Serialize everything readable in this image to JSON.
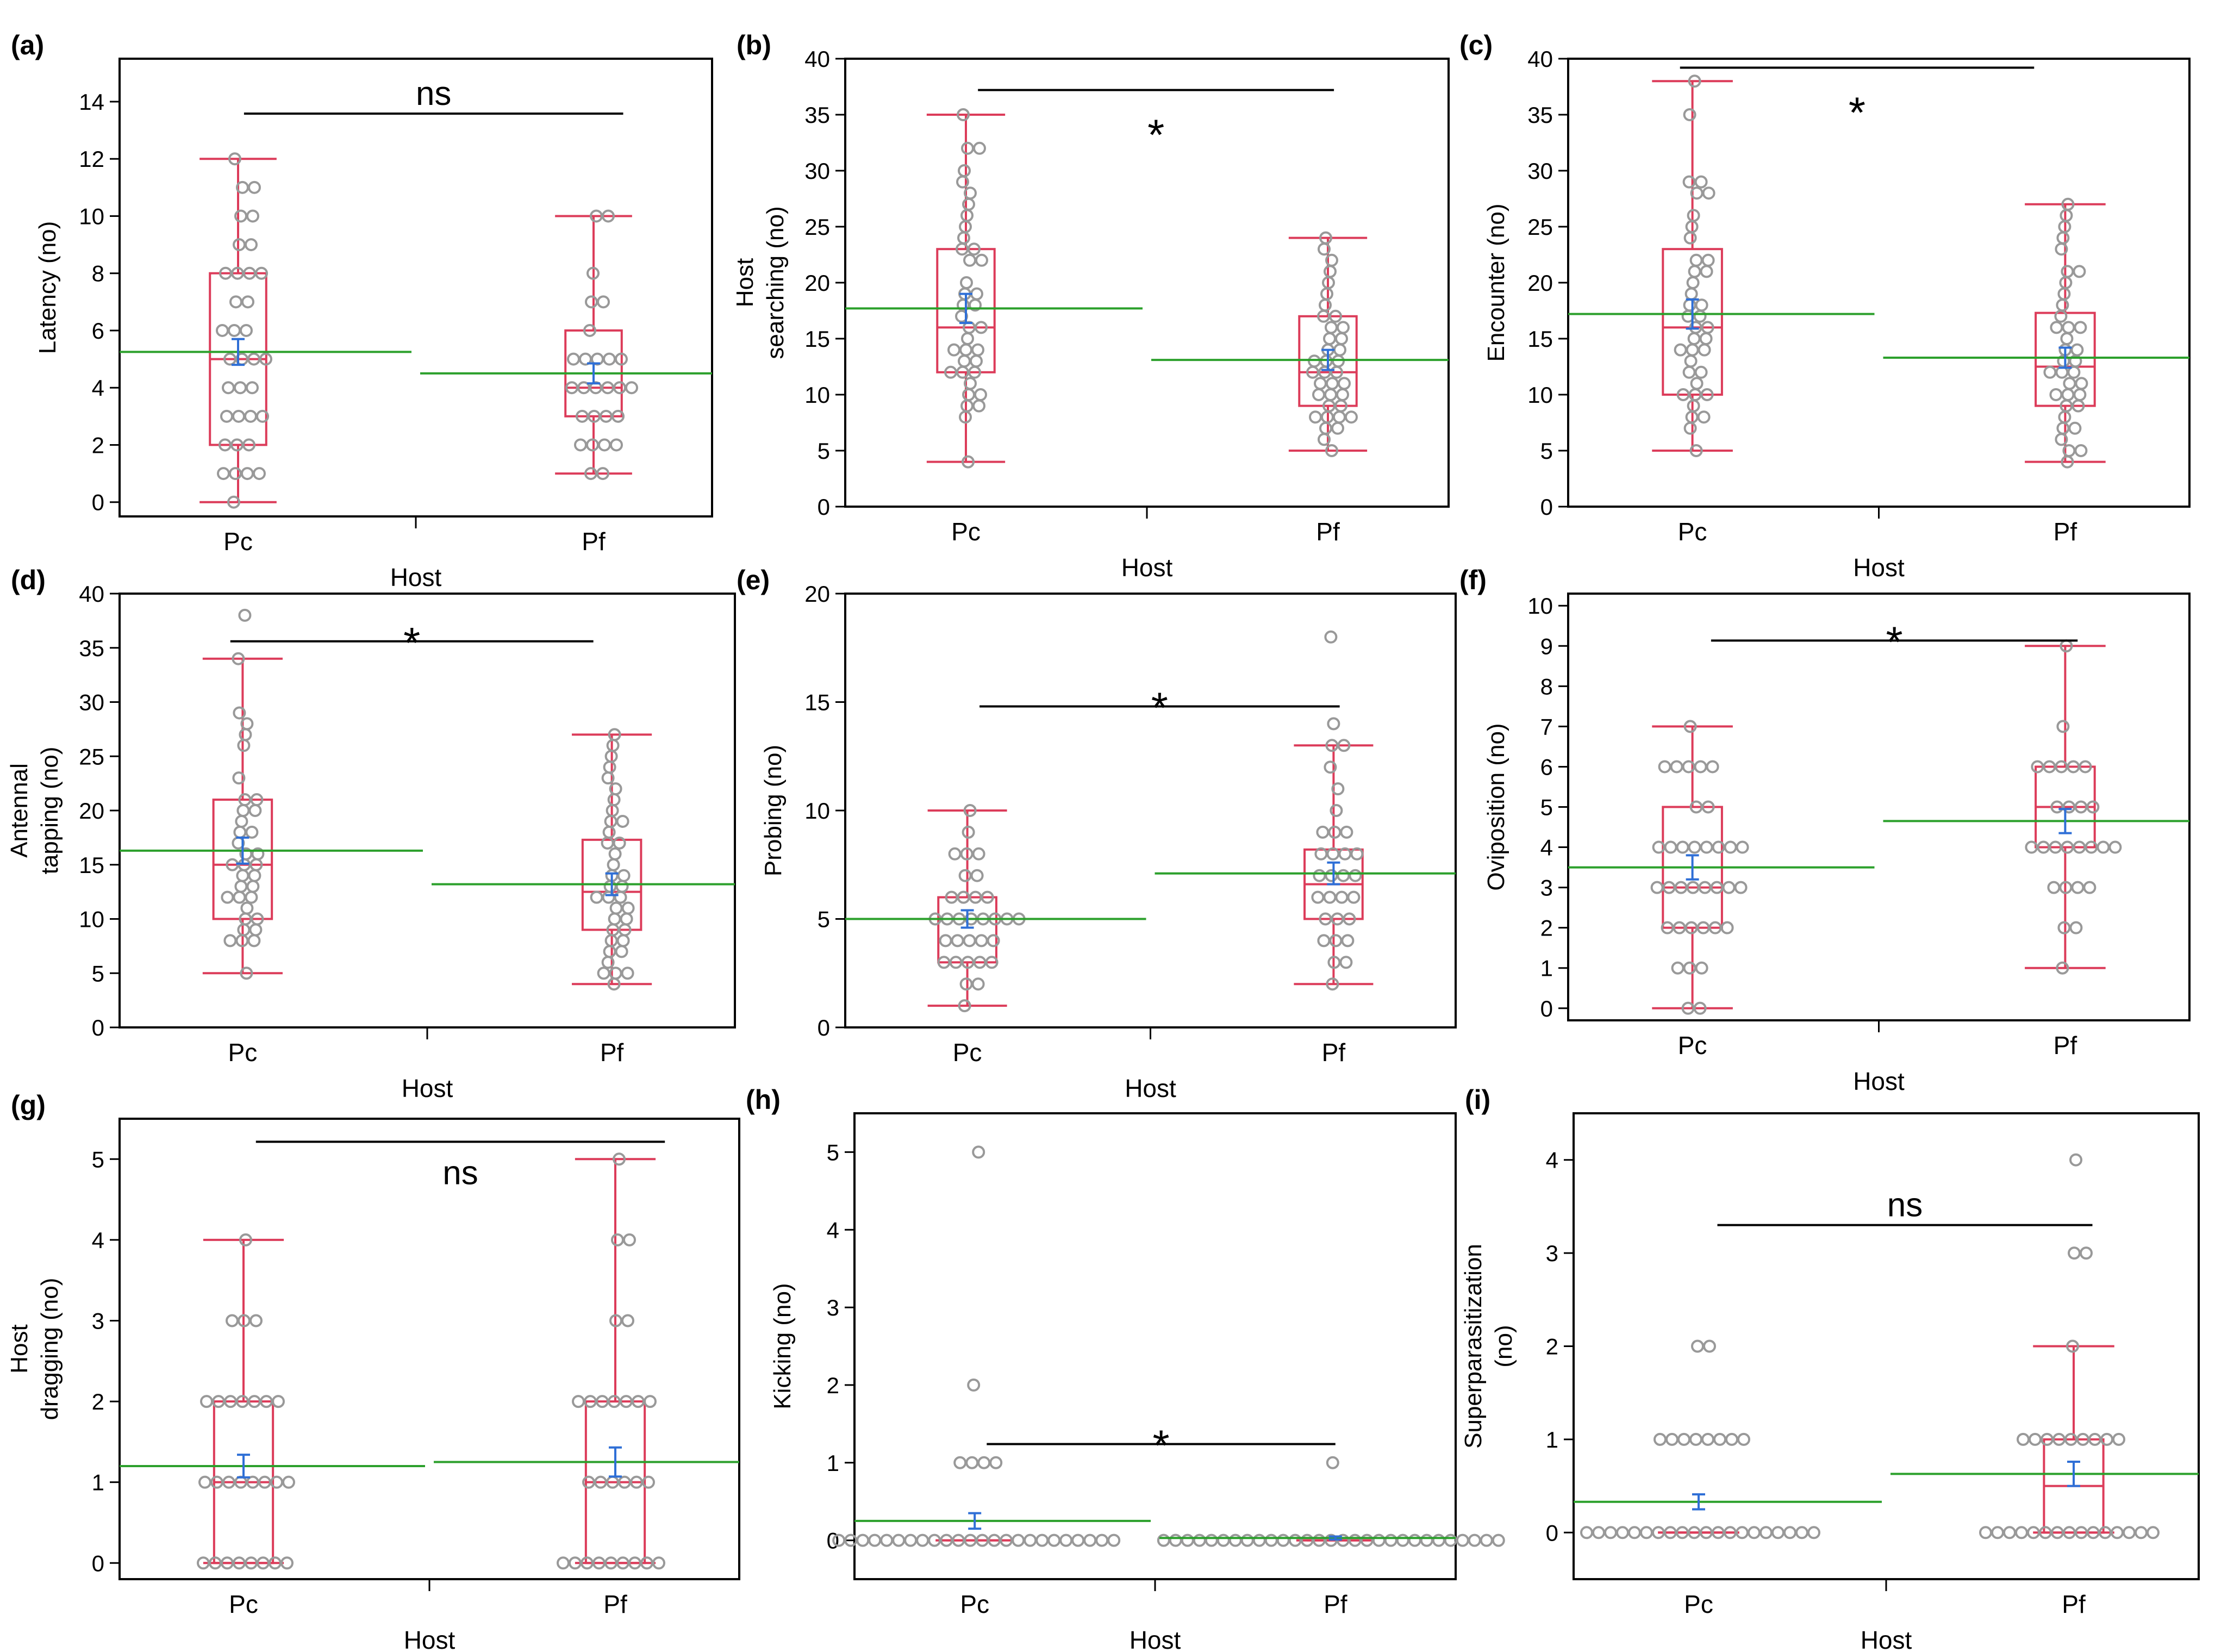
{
  "figure": {
    "x_axis_label": "Host"
  },
  "colors": {
    "box": "#dc3c5a",
    "dot": "#999999",
    "mean_line": "#2ca02c",
    "sem": "#2f6fd6",
    "axis": "#000000",
    "bracket": "#000000"
  },
  "chart_data": [
    {
      "panel": "(a)",
      "type": "box",
      "ylabel": [
        "Latency (no)"
      ],
      "categories": [
        "Pc",
        "Pf"
      ],
      "ylim": [
        -0.5,
        15.5
      ],
      "yticks": [
        0,
        2,
        4,
        6,
        8,
        10,
        12,
        14
      ],
      "boxes": [
        {
          "min": 0,
          "q1": 2,
          "median": 5,
          "q3": 8,
          "max": 12,
          "mean": 5.25,
          "sem": 0.45
        },
        {
          "min": 1,
          "q1": 3,
          "median": 4,
          "q3": 6,
          "max": 10,
          "mean": 4.5,
          "sem": 0.35
        }
      ],
      "points": [
        [
          12,
          11,
          11,
          10,
          10,
          9,
          9,
          8,
          8,
          8,
          8,
          7,
          7,
          6,
          6,
          6,
          5,
          5,
          5,
          5,
          4,
          4,
          4,
          3,
          3,
          3,
          3,
          2,
          2,
          2,
          1,
          1,
          1,
          1,
          0
        ],
        [
          10,
          10,
          8,
          7,
          7,
          6,
          5,
          5,
          5,
          5,
          5,
          4,
          4,
          4,
          4,
          4,
          4,
          3,
          3,
          3,
          3,
          2,
          2,
          2,
          2,
          1,
          1
        ]
      ],
      "significance": "ns"
    },
    {
      "panel": "(b)",
      "type": "box",
      "ylabel": [
        "Host",
        "searching (no)"
      ],
      "categories": [
        "Pc",
        "Pf"
      ],
      "ylim": [
        0,
        40
      ],
      "yticks": [
        0,
        5,
        10,
        15,
        20,
        25,
        30,
        35,
        40
      ],
      "boxes": [
        {
          "min": 4,
          "q1": 12,
          "median": 16,
          "q3": 23,
          "max": 35,
          "mean": 17.7,
          "sem": 1.3
        },
        {
          "min": 5,
          "q1": 9,
          "median": 12,
          "q3": 17,
          "max": 24,
          "mean": 13.1,
          "sem": 0.9
        }
      ],
      "points": [
        [
          35,
          32,
          32,
          30,
          29,
          28,
          27,
          26,
          25,
          24,
          23,
          23,
          22,
          22,
          20,
          19,
          19,
          18,
          18,
          17,
          16,
          16,
          15,
          14,
          14,
          14,
          13,
          13,
          12,
          12,
          12,
          11,
          10,
          10,
          9,
          9,
          8,
          4
        ],
        [
          24,
          23,
          22,
          21,
          20,
          19,
          18,
          17,
          17,
          16,
          16,
          15,
          15,
          14,
          14,
          13,
          13,
          13,
          12,
          12,
          12,
          11,
          11,
          11,
          10,
          10,
          10,
          9,
          9,
          8,
          8,
          8,
          8,
          7,
          7,
          6,
          5
        ]
      ],
      "significance": "*"
    },
    {
      "panel": "(c)",
      "type": "box",
      "ylabel": [
        "Encounter (no)"
      ],
      "categories": [
        "Pc",
        "Pf"
      ],
      "ylim": [
        0,
        40
      ],
      "yticks": [
        0,
        5,
        10,
        15,
        20,
        25,
        30,
        35,
        40
      ],
      "boxes": [
        {
          "min": 5,
          "q1": 10,
          "median": 16,
          "q3": 23,
          "max": 38,
          "mean": 17.2,
          "sem": 1.3
        },
        {
          "min": 4,
          "q1": 9,
          "median": 12.5,
          "q3": 17.3,
          "max": 27,
          "mean": 13.3,
          "sem": 0.9
        }
      ],
      "points": [
        [
          38,
          35,
          29,
          29,
          28,
          28,
          26,
          25,
          24,
          22,
          22,
          21,
          21,
          20,
          19,
          18,
          18,
          17,
          17,
          16,
          16,
          15,
          15,
          14,
          14,
          14,
          13,
          12,
          12,
          11,
          10,
          10,
          10,
          9,
          8,
          8,
          7,
          5
        ],
        [
          27,
          26,
          25,
          24,
          23,
          21,
          21,
          20,
          19,
          18,
          17,
          16,
          16,
          16,
          15,
          14,
          14,
          13,
          13,
          12,
          12,
          12,
          11,
          11,
          10,
          10,
          10,
          9,
          9,
          8,
          7,
          7,
          6,
          5,
          5,
          4
        ]
      ],
      "significance": "*"
    },
    {
      "panel": "(d)",
      "type": "box",
      "ylabel": [
        "Antennal",
        "tapping (no)"
      ],
      "categories": [
        "Pc",
        "Pf"
      ],
      "ylim": [
        0,
        40
      ],
      "yticks": [
        0,
        5,
        10,
        15,
        20,
        25,
        30,
        35,
        40
      ],
      "boxes": [
        {
          "min": 5,
          "q1": 10,
          "median": 15,
          "q3": 21,
          "max": 34,
          "mean": 16.3,
          "sem": 1.2
        },
        {
          "min": 4,
          "q1": 9,
          "median": 12.5,
          "q3": 17.3,
          "max": 27,
          "mean": 13.2,
          "sem": 1.0
        }
      ],
      "points": [
        [
          38,
          34,
          29,
          28,
          27,
          26,
          23,
          21,
          21,
          20,
          20,
          19,
          18,
          18,
          17,
          16,
          16,
          15,
          15,
          15,
          14,
          14,
          13,
          13,
          12,
          12,
          12,
          11,
          10,
          10,
          9,
          9,
          8,
          8,
          8,
          5
        ],
        [
          27,
          26,
          25,
          24,
          23,
          22,
          21,
          20,
          19,
          19,
          18,
          17,
          17,
          16,
          15,
          14,
          14,
          13,
          13,
          12,
          12,
          12,
          11,
          11,
          10,
          10,
          9,
          9,
          8,
          8,
          7,
          7,
          6,
          5,
          5,
          5,
          4
        ]
      ],
      "significance": "*"
    },
    {
      "panel": "(e)",
      "type": "box",
      "ylabel": [
        "Probing (no)"
      ],
      "categories": [
        "Pc",
        "Pf"
      ],
      "ylim": [
        0,
        20
      ],
      "yticks": [
        0,
        5,
        10,
        15,
        20
      ],
      "boxes": [
        {
          "min": 1,
          "q1": 3,
          "median": 5,
          "q3": 6,
          "max": 10,
          "mean": 5.0,
          "sem": 0.4
        },
        {
          "min": 2,
          "q1": 5,
          "median": 6.6,
          "q3": 8.2,
          "max": 13,
          "mean": 7.1,
          "sem": 0.5
        }
      ],
      "points": [
        [
          10,
          9,
          8,
          8,
          8,
          7,
          7,
          6,
          6,
          6,
          6,
          5,
          5,
          5,
          5,
          5,
          5,
          5,
          5,
          4,
          4,
          4,
          4,
          4,
          3,
          3,
          3,
          3,
          3,
          2,
          2,
          1
        ],
        [
          18,
          14,
          13,
          13,
          12,
          11,
          10,
          9,
          9,
          9,
          8,
          8,
          8,
          8,
          7,
          7,
          7,
          7,
          6,
          6,
          6,
          6,
          5,
          5,
          5,
          4,
          4,
          4,
          3,
          3,
          2
        ]
      ],
      "significance": "*"
    },
    {
      "panel": "(f)",
      "type": "box",
      "ylabel": [
        "Oviposition (no)"
      ],
      "categories": [
        "Pc",
        "Pf"
      ],
      "ylim": [
        -0.3,
        10.3
      ],
      "yticks": [
        0,
        1,
        2,
        3,
        4,
        5,
        6,
        7,
        8,
        9,
        10
      ],
      "boxes": [
        {
          "min": 0,
          "q1": 2,
          "median": 3,
          "q3": 5,
          "max": 7,
          "mean": 3.5,
          "sem": 0.3
        },
        {
          "min": 1,
          "q1": 4,
          "median": 5,
          "q3": 6,
          "max": 9,
          "mean": 4.65,
          "sem": 0.3
        }
      ],
      "points": [
        [
          7,
          6,
          6,
          6,
          6,
          6,
          5,
          5,
          4,
          4,
          4,
          4,
          4,
          4,
          4,
          4,
          3,
          3,
          3,
          3,
          3,
          3,
          3,
          3,
          2,
          2,
          2,
          2,
          2,
          2,
          1,
          1,
          1,
          0,
          0
        ],
        [
          9,
          7,
          6,
          6,
          6,
          6,
          6,
          5,
          5,
          5,
          5,
          4,
          4,
          4,
          4,
          4,
          4,
          4,
          4,
          3,
          3,
          3,
          3,
          2,
          2,
          1
        ]
      ],
      "significance": "*"
    },
    {
      "panel": "(g)",
      "type": "box",
      "ylabel": [
        "Host",
        "dragging (no)"
      ],
      "categories": [
        "Pc",
        "Pf"
      ],
      "ylim": [
        -0.2,
        5.5
      ],
      "yticks": [
        0,
        1,
        2,
        3,
        4,
        5
      ],
      "boxes": [
        {
          "min": 0,
          "q1": 0,
          "median": 1,
          "q3": 2,
          "max": 4,
          "mean": 1.2,
          "sem": 0.14
        },
        {
          "min": 0,
          "q1": 0,
          "median": 1,
          "q3": 2,
          "max": 5,
          "mean": 1.25,
          "sem": 0.18
        }
      ],
      "points": [
        [
          4,
          3,
          3,
          3,
          2,
          2,
          2,
          2,
          2,
          2,
          2,
          1,
          1,
          1,
          1,
          1,
          1,
          1,
          1,
          0,
          0,
          0,
          0,
          0,
          0,
          0,
          0
        ],
        [
          5,
          4,
          4,
          3,
          3,
          2,
          2,
          2,
          2,
          2,
          2,
          2,
          1,
          1,
          1,
          1,
          1,
          1,
          0,
          0,
          0,
          0,
          0,
          0,
          0,
          0,
          0
        ]
      ],
      "significance": "ns"
    },
    {
      "panel": "(h)",
      "type": "box",
      "ylabel": [
        "Kicking (no)"
      ],
      "categories": [
        "Pc",
        "Pf"
      ],
      "ylim": [
        -0.5,
        5.5
      ],
      "yticks": [
        0,
        1,
        2,
        3,
        4,
        5
      ],
      "boxes": [
        {
          "min": 0,
          "q1": 0,
          "median": 0,
          "q3": 0,
          "max": 0,
          "mean": 0.25,
          "sem": 0.1
        },
        {
          "min": 0,
          "q1": 0,
          "median": 0,
          "q3": 0,
          "max": 0,
          "mean": 0.03,
          "sem": 0.02
        }
      ],
      "points": [
        [
          5,
          2,
          1,
          1,
          1,
          1,
          0,
          0,
          0,
          0,
          0,
          0,
          0,
          0,
          0,
          0,
          0,
          0,
          0,
          0,
          0,
          0,
          0,
          0,
          0,
          0,
          0,
          0,
          0,
          0
        ],
        [
          1,
          0,
          0,
          0,
          0,
          0,
          0,
          0,
          0,
          0,
          0,
          0,
          0,
          0,
          0,
          0,
          0,
          0,
          0,
          0,
          0,
          0,
          0,
          0,
          0,
          0,
          0,
          0,
          0,
          0
        ]
      ],
      "significance": "*"
    },
    {
      "panel": "(i)",
      "type": "box",
      "ylabel": [
        "Superparasitization",
        "(no)"
      ],
      "categories": [
        "Pc",
        "Pf"
      ],
      "ylim": [
        -0.5,
        4.5
      ],
      "yticks": [
        0,
        1,
        2,
        3,
        4
      ],
      "boxes": [
        {
          "min": 0,
          "q1": 0,
          "median": 0,
          "q3": 0,
          "max": 0,
          "mean": 0.33,
          "sem": 0.08
        },
        {
          "min": 0,
          "q1": 0,
          "median": 0.5,
          "q3": 1,
          "max": 2,
          "mean": 0.63,
          "sem": 0.13
        }
      ],
      "points": [
        [
          2,
          2,
          1,
          1,
          1,
          1,
          1,
          1,
          1,
          1,
          0,
          0,
          0,
          0,
          0,
          0,
          0,
          0,
          0,
          0,
          0,
          0,
          0,
          0,
          0,
          0,
          0,
          0,
          0,
          0
        ],
        [
          4,
          3,
          3,
          2,
          1,
          1,
          1,
          1,
          1,
          1,
          1,
          1,
          1,
          0,
          0,
          0,
          0,
          0,
          0,
          0,
          0,
          0,
          0,
          0,
          0,
          0,
          0,
          0
        ]
      ],
      "significance": "ns"
    }
  ]
}
